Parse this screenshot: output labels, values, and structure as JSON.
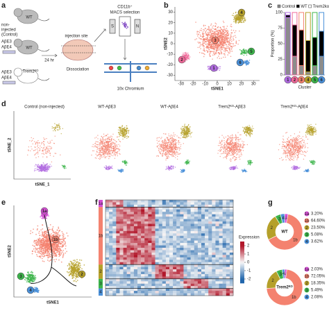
{
  "panel_labels": [
    "a",
    "b",
    "c",
    "d",
    "e",
    "f",
    "g"
  ],
  "panel_a": {
    "mouse_wt": "WT",
    "control_lines": [
      "non-",
      "injected",
      "(Control)"
    ],
    "mouse_wt2": "WT",
    "injections_1": [
      "AβE3",
      "AβE4"
    ],
    "mouse_ko": "Trem2ᴷᴼ",
    "injections_2": [
      "AβE3",
      "AβE4"
    ],
    "time": "24 hr",
    "injection_site": "injection site",
    "dissociation": "Dissociation",
    "selection": [
      "CD11b⁺",
      "MACS selection"
    ],
    "chip_letters": [
      "S",
      "N"
    ],
    "platform": "10x Chromium"
  },
  "chart_data": [
    {
      "type": "scatter",
      "xlabel": "tSNE1",
      "ylabel": "tSNE2",
      "xlim": [
        -35,
        35
      ],
      "ylim": [
        -35,
        35
      ],
      "xticks": [
        -30,
        -20,
        -10,
        0,
        10,
        20,
        30
      ],
      "yticks": [
        -30,
        -20,
        -10,
        0,
        10,
        20,
        30
      ],
      "annotations": [
        "1",
        "2",
        "3",
        "4",
        "5",
        "6"
      ]
    },
    {
      "type": "bar",
      "stacked": true,
      "ylabel": "Proportion (%)",
      "xlabel": "Cluster",
      "categories": [
        "1",
        "2",
        "3",
        "4",
        "5",
        "6"
      ],
      "category_colors": [
        "#b06be0",
        "#f06a9a",
        "#f4826f",
        "#b5a02a",
        "#3cb44b",
        "#4a90d9"
      ],
      "ylim": [
        0,
        100
      ],
      "yticks": [
        0,
        25,
        50,
        75,
        100
      ],
      "legend": "top",
      "series": [
        {
          "name": "Control",
          "color": "#8c8c8c",
          "values": [
            92,
            30,
            15,
            5,
            15,
            30
          ]
        },
        {
          "name": "WT",
          "color": "#000000",
          "values": [
            4,
            50,
            57,
            50,
            45,
            40
          ]
        },
        {
          "name": "Trem2ko",
          "color": "#ffffff",
          "values": [
            4,
            20,
            28,
            45,
            40,
            30
          ]
        }
      ]
    },
    {
      "type": "scatter",
      "xlabel": "tSNE_1",
      "ylabel": "tSNE_2",
      "titles": [
        "Control (non-injected)",
        "WT-AβE3",
        "WT-AβE4",
        "Trem2ᴷᴼ-AβE3",
        "Trem2ᴷᴼ-AβE4"
      ]
    },
    {
      "type": "scatter",
      "xlabel": "tSNE1",
      "ylabel": "tSNE2",
      "annotations": [
        "1a",
        "1b",
        "2",
        "3",
        "4"
      ]
    },
    {
      "type": "heatmap",
      "colorbar_label": "Expression",
      "clim": [
        -2.5,
        2.5
      ],
      "cticks": [
        2,
        1,
        0,
        -1,
        -2
      ],
      "row_groups": [
        "1a",
        "1b",
        "2",
        "3",
        "4"
      ],
      "group_colors": [
        "#d44fd4",
        "#f4826f",
        "#b5a02a",
        "#3cb44b",
        "#4a90d9"
      ]
    },
    {
      "type": "pie",
      "donut": true,
      "center_label": "WT",
      "categories": [
        "1a",
        "1b",
        "2",
        "3",
        "4"
      ],
      "values": [
        3.2,
        64.6,
        23.5,
        5.08,
        3.62
      ],
      "value_labels": [
        "3.20%",
        "64.60%",
        "23.50%",
        "5.08%",
        "3.62%"
      ],
      "colors": [
        "#d44fd4",
        "#f4826f",
        "#b5a02a",
        "#3cb44b",
        "#4a90d9"
      ]
    },
    {
      "type": "pie",
      "donut": true,
      "center_label": "Trem2ᴷᴼ",
      "categories": [
        "1a",
        "1b",
        "2",
        "3",
        "4"
      ],
      "values": [
        2.03,
        72.05,
        18.35,
        5.49,
        2.08
      ],
      "value_labels": [
        "2.03%",
        "72.05%",
        "18.35%",
        "5.49%",
        "2.08%"
      ],
      "colors": [
        "#d44fd4",
        "#f4826f",
        "#b5a02a",
        "#3cb44b",
        "#4a90d9"
      ]
    }
  ]
}
